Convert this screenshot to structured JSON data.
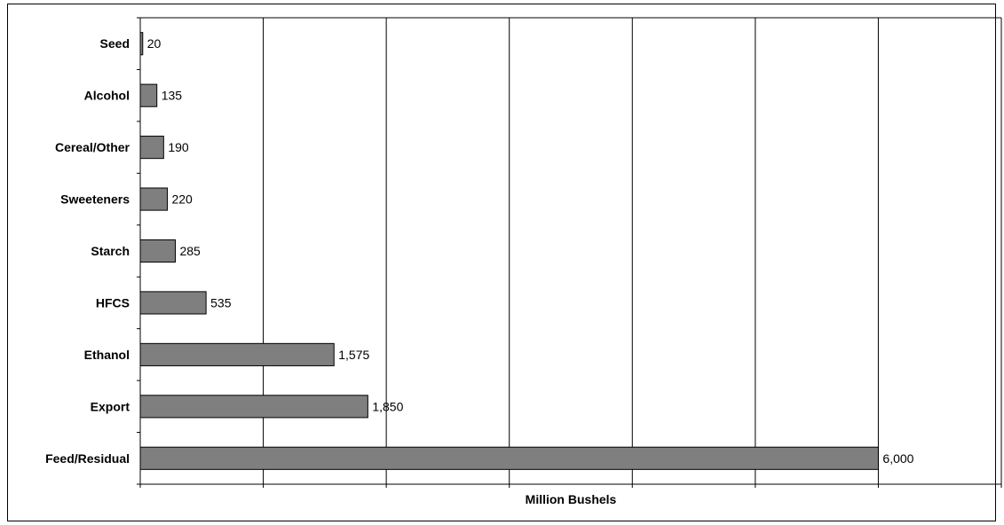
{
  "chart_data": {
    "type": "bar",
    "orientation": "horizontal",
    "categories": [
      "Seed",
      "Alcohol",
      "Cereal/Other",
      "Sweeteners",
      "Starch",
      "HFCS",
      "Ethanol",
      "Export",
      "Feed/Residual"
    ],
    "values": [
      20,
      135,
      190,
      220,
      285,
      535,
      1575,
      1850,
      6000
    ],
    "value_labels": [
      "20",
      "135",
      "190",
      "220",
      "285",
      "535",
      "1,575",
      "1,850",
      "6,000"
    ],
    "title": "",
    "xlabel": "Million Bushels",
    "ylabel": "",
    "xlim": [
      0,
      7000
    ],
    "grid": "vertical",
    "legend": "none",
    "bar_color": "#7f7f7f",
    "tick_labels_shown": false
  }
}
